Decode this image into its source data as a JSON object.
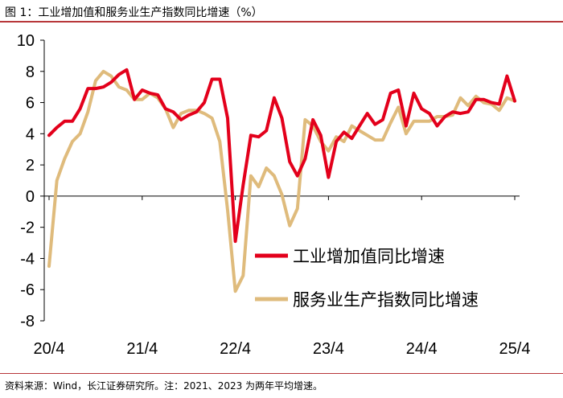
{
  "header": {
    "title": "图 1：工业增加值和服务业生产指数同比增速（%）"
  },
  "footer": {
    "source": "资料来源：Wind，长江证券研究所。注：2021、2023 为两年平均增速。"
  },
  "colors": {
    "accent": "#b8373b",
    "series_red": "#e3001b",
    "series_gold": "#dfbb7c"
  },
  "chart_data": {
    "type": "line",
    "title": "",
    "xlabel": "",
    "ylabel": "",
    "ylim": [
      -8,
      10
    ],
    "yticks": [
      10,
      8,
      6,
      4,
      2,
      0,
      -2,
      -4,
      -6,
      -8
    ],
    "ytick_labels": [
      "10",
      "8",
      "6",
      "4",
      "2",
      "0",
      "-2",
      "-4",
      "-6",
      "-8"
    ],
    "xtick_labels": [
      "20/4",
      "21/4",
      "22/4",
      "23/4",
      "24/4",
      "25/4"
    ],
    "grid": false,
    "legend_position": "lower-right",
    "x": [
      "20/4",
      "20/5",
      "20/6",
      "20/7",
      "20/8",
      "20/9",
      "20/10",
      "20/11",
      "20/12",
      "21/1",
      "21/2",
      "21/3",
      "21/4",
      "21/5",
      "21/6",
      "21/7",
      "21/8",
      "21/9",
      "21/10",
      "21/11",
      "21/12",
      "22/1",
      "22/2",
      "22/3",
      "22/4",
      "22/5",
      "22/6",
      "22/7",
      "22/8",
      "22/9",
      "22/10",
      "22/11",
      "22/12",
      "23/1",
      "23/2",
      "23/3",
      "23/4",
      "23/5",
      "23/6",
      "23/7",
      "23/8",
      "23/9",
      "23/10",
      "23/11",
      "23/12",
      "24/1",
      "24/2",
      "24/3",
      "24/4",
      "24/5",
      "24/6",
      "24/7",
      "24/8",
      "24/9",
      "24/10",
      "24/11",
      "24/12",
      "25/1",
      "25/2",
      "25/3",
      "25/4"
    ],
    "series": [
      {
        "name": "工业增加值同比增速",
        "color": "#e3001b",
        "values": [
          3.9,
          4.4,
          4.8,
          4.8,
          5.6,
          6.9,
          6.9,
          7.0,
          7.3,
          7.8,
          8.1,
          6.2,
          6.8,
          6.6,
          6.5,
          5.6,
          5.4,
          4.9,
          5.2,
          5.4,
          6.0,
          7.5,
          7.5,
          5.0,
          -2.9,
          0.7,
          3.9,
          3.8,
          4.2,
          6.3,
          5.0,
          2.2,
          1.3,
          2.4,
          4.9,
          3.9,
          1.2,
          3.5,
          4.1,
          3.7,
          4.5,
          5.3,
          4.6,
          4.9,
          6.6,
          6.8,
          4.5,
          6.6,
          5.6,
          5.3,
          4.5,
          5.1,
          5.4,
          5.3,
          5.4,
          6.2,
          6.2,
          6.0,
          5.9,
          7.7,
          6.1
        ]
      },
      {
        "name": "服务业生产指数同比增速",
        "color": "#dfbb7c",
        "values": [
          -4.5,
          1.0,
          2.4,
          3.5,
          4.0,
          5.4,
          7.4,
          8.0,
          7.7,
          7.0,
          6.8,
          6.2,
          6.2,
          6.6,
          6.3,
          5.6,
          4.4,
          5.3,
          5.5,
          5.5,
          5.3,
          5.0,
          3.5,
          -0.9,
          -6.1,
          -5.1,
          1.3,
          0.6,
          1.8,
          1.3,
          0.1,
          -1.9,
          -0.8,
          4.9,
          4.5,
          3.5,
          2.9,
          3.8,
          3.5,
          4.5,
          4.2,
          3.9,
          3.6,
          3.6,
          4.7,
          5.7,
          4.0,
          4.8,
          4.8,
          4.8,
          5.1,
          5.1,
          5.2,
          6.3,
          5.8,
          6.4,
          6.0,
          5.9,
          5.5,
          6.3,
          6.1
        ]
      }
    ]
  }
}
